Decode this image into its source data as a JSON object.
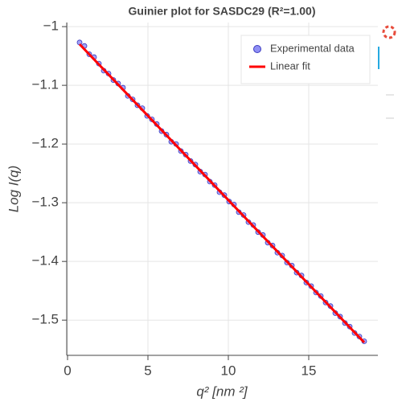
{
  "chart_data": {
    "type": "scatter",
    "title": "Guinier plot for SASDC29 (R²=1.00)",
    "x_label": "q² [nm ²]",
    "y_label": "Log I(q)",
    "xlim": [
      -0.05,
      19.3
    ],
    "ylim": [
      -1.56,
      -0.993
    ],
    "xticks": [
      0,
      5,
      10,
      15
    ],
    "yticks": [
      {
        "value": -1,
        "label": "−1"
      },
      {
        "value": -1.1,
        "label": "−1.1"
      },
      {
        "value": -1.2,
        "label": "−1.2"
      },
      {
        "value": -1.3,
        "label": "−1.3"
      },
      {
        "value": -1.4,
        "label": "−1.4"
      },
      {
        "value": -1.5,
        "label": "−1.5"
      }
    ],
    "grid": true,
    "legend": "top-right",
    "series": [
      {
        "name": "Experimental data",
        "type": "scatter",
        "color": "#8f8ff5",
        "x": [
          0.75,
          1.05,
          1.35,
          1.65,
          1.95,
          2.25,
          2.55,
          2.85,
          3.15,
          3.45,
          3.75,
          4.05,
          4.35,
          4.65,
          4.95,
          5.25,
          5.55,
          5.85,
          6.15,
          6.45,
          6.75,
          7.05,
          7.35,
          7.65,
          7.95,
          8.25,
          8.55,
          8.85,
          9.15,
          9.45,
          9.75,
          10.05,
          10.35,
          10.65,
          10.95,
          11.25,
          11.55,
          11.85,
          12.15,
          12.45,
          12.75,
          13.05,
          13.35,
          13.65,
          13.95,
          14.25,
          14.55,
          14.85,
          15.15,
          15.45,
          15.75,
          16.05,
          16.35,
          16.65,
          16.95,
          17.25,
          17.55,
          17.85,
          18.15,
          18.45
        ],
        "values": [
          -1.027,
          -1.033,
          -1.047,
          -1.052,
          -1.063,
          -1.075,
          -1.08,
          -1.091,
          -1.097,
          -1.104,
          -1.118,
          -1.124,
          -1.134,
          -1.139,
          -1.152,
          -1.158,
          -1.166,
          -1.178,
          -1.184,
          -1.196,
          -1.2,
          -1.212,
          -1.218,
          -1.229,
          -1.235,
          -1.247,
          -1.252,
          -1.264,
          -1.27,
          -1.282,
          -1.287,
          -1.298,
          -1.303,
          -1.316,
          -1.321,
          -1.333,
          -1.338,
          -1.35,
          -1.355,
          -1.368,
          -1.373,
          -1.385,
          -1.39,
          -1.402,
          -1.407,
          -1.419,
          -1.424,
          -1.436,
          -1.442,
          -1.453,
          -1.459,
          -1.47,
          -1.476,
          -1.488,
          -1.494,
          -1.505,
          -1.511,
          -1.522,
          -1.528,
          -1.536
        ]
      },
      {
        "name": "Linear fit",
        "type": "line",
        "color": "#ff0000",
        "x": [
          0.75,
          18.45
        ],
        "values": [
          -1.03,
          -1.538
        ]
      }
    ]
  }
}
